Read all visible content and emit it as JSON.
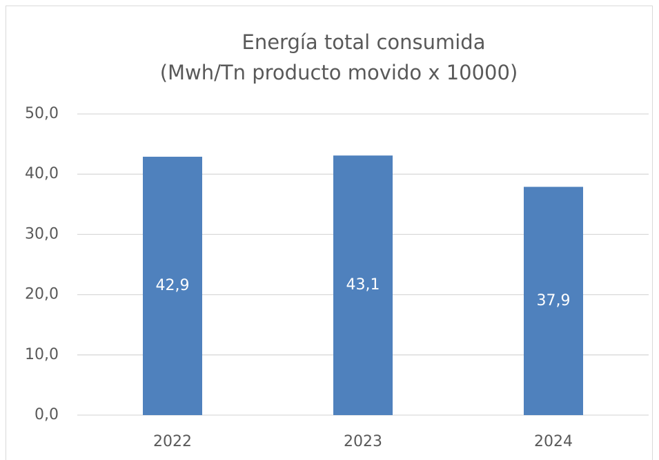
{
  "chart_data": {
    "type": "bar",
    "title": "Energía total consumida",
    "subtitle": "(Mwh/Tn producto movido x 10000)",
    "categories": [
      "2022",
      "2023",
      "2024"
    ],
    "values": [
      42.9,
      43.1,
      37.9
    ],
    "value_labels": [
      "42,9",
      "43,1",
      "37,9"
    ],
    "color": "#4f81bd",
    "ylim": [
      0,
      50
    ],
    "yticks": [
      {
        "value": 0,
        "label": "0,0"
      },
      {
        "value": 10,
        "label": "10,0"
      },
      {
        "value": 20,
        "label": "20,0"
      },
      {
        "value": 30,
        "label": "30,0"
      },
      {
        "value": 40,
        "label": "40,0"
      },
      {
        "value": 50,
        "label": "50,0"
      }
    ],
    "grid": true
  }
}
